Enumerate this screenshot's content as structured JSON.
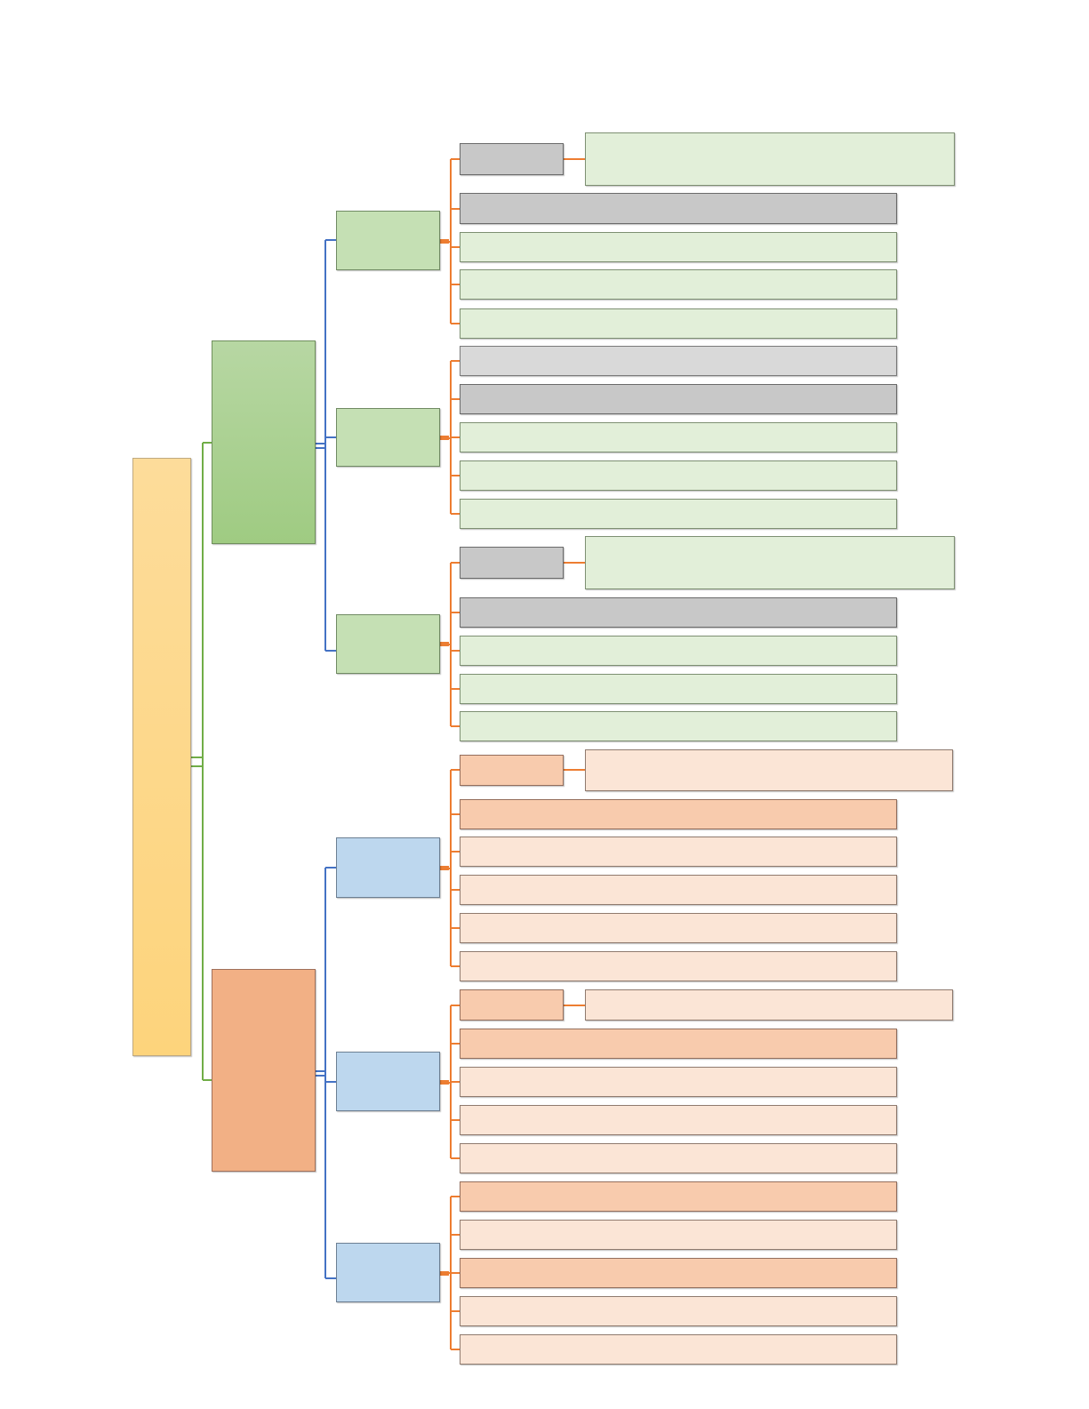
{
  "diagram": {
    "root": {
      "label": ""
    },
    "branches": [
      {
        "label": "",
        "children": [
          {
            "label": "",
            "items": [
              "",
              "",
              "",
              "",
              ""
            ],
            "detail": ""
          },
          {
            "label": "",
            "items": [
              "",
              "",
              "",
              "",
              ""
            ]
          },
          {
            "label": "",
            "items": [
              "",
              "",
              "",
              "",
              ""
            ],
            "detail": ""
          }
        ]
      },
      {
        "label": "",
        "children": [
          {
            "label": "",
            "items": [
              "",
              "",
              "",
              "",
              "",
              ""
            ],
            "detail": ""
          },
          {
            "label": "",
            "items": [
              "",
              "",
              "",
              "",
              ""
            ],
            "detail": ""
          },
          {
            "label": "",
            "items": [
              "",
              "",
              "",
              "",
              ""
            ]
          }
        ]
      }
    ]
  },
  "colors": {
    "root": "#fdd47c",
    "branch_green": "#a9d18e",
    "branch_orange": "#f4b183",
    "group_green": "#c5e0b4",
    "group_blue": "#bdd7ee",
    "leaf_gray": "#c9c9c9",
    "leaf_light_gray": "#d9d9d9",
    "leaf_green": "#e2efd9",
    "leaf_peach": "#f8cbad",
    "leaf_light_peach": "#fbe5d6",
    "connector_green": "#70ad47",
    "connector_blue": "#4472c4",
    "connector_orange": "#ed7d31"
  }
}
